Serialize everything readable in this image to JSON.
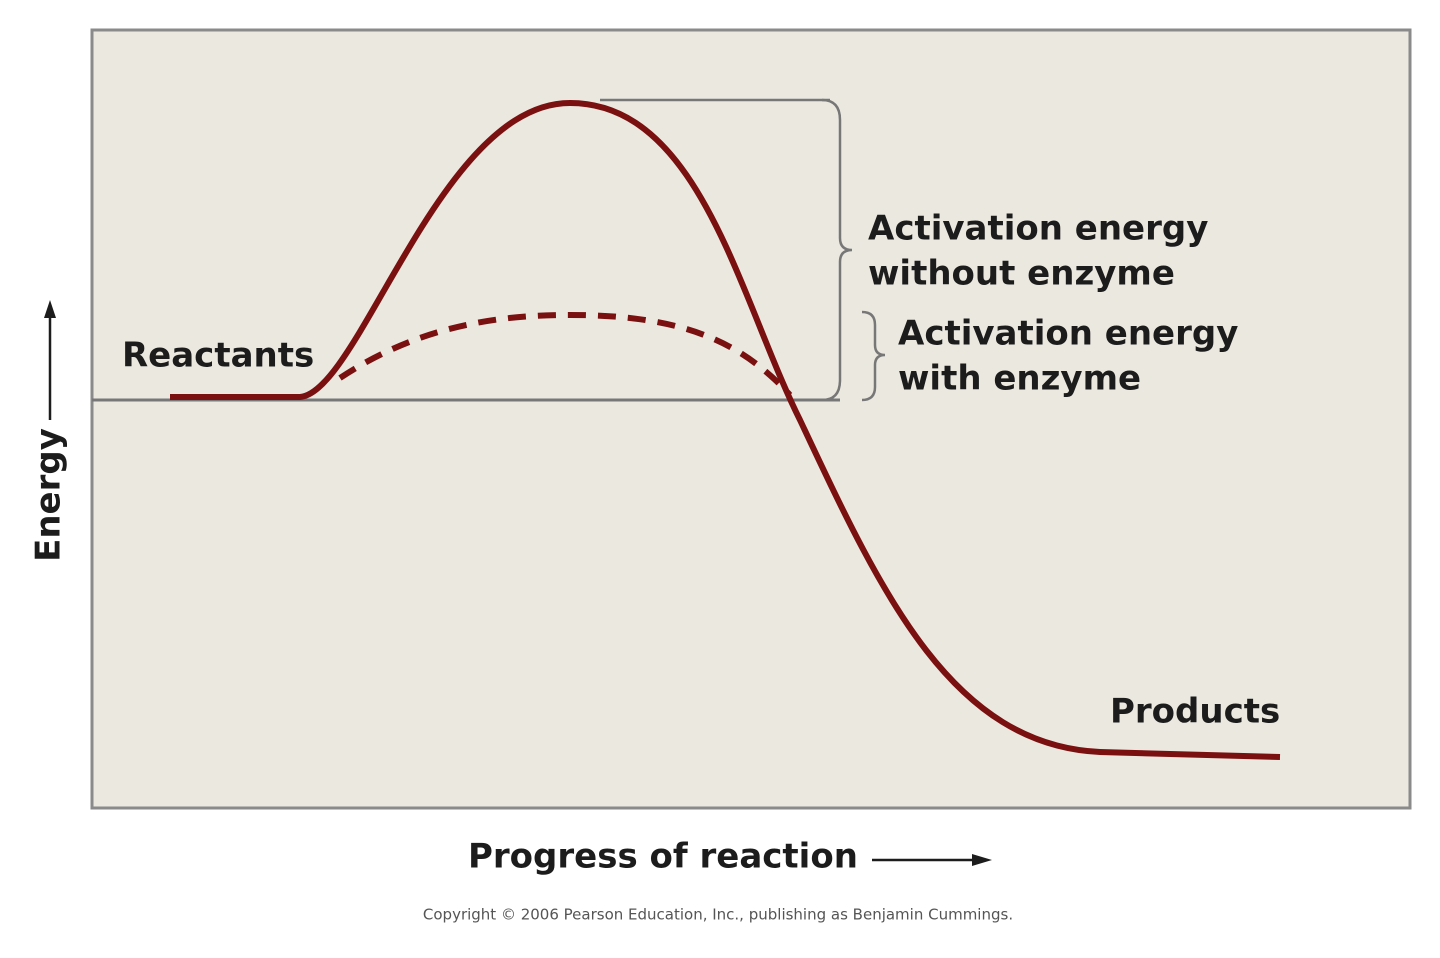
{
  "axes": {
    "y_label": "Energy",
    "x_label": "Progress of reaction"
  },
  "labels": {
    "reactants": "Reactants",
    "products": "Products",
    "without_enzyme": [
      "Activation energy",
      "without enzyme"
    ],
    "with_enzyme": [
      "Activation energy",
      "with enzyme"
    ]
  },
  "footer": {
    "copyright": "Copyright © 2006 Pearson Education, Inc., publishing as Benjamin Cummings."
  }
}
